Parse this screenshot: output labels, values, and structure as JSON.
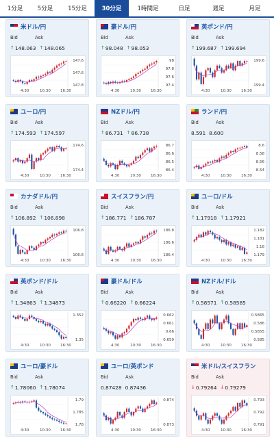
{
  "tabs": [
    {
      "label": "1分足",
      "active": false
    },
    {
      "label": "5分足",
      "active": false
    },
    {
      "label": "15分足",
      "active": false
    },
    {
      "label": "30分足",
      "active": true
    },
    {
      "label": "1時間足",
      "active": false
    },
    {
      "label": "日足",
      "active": false
    },
    {
      "label": "週足",
      "active": false
    },
    {
      "label": "月足",
      "active": false
    }
  ],
  "labels": {
    "bid": "Bid",
    "ask": "Ask"
  },
  "colors": {
    "accent": "#1b4c9a",
    "up": "#d02a2a",
    "down": "#1b56a6",
    "ma": "#c03cc0",
    "arrow_up": "#2a8a3e",
    "arrow_down": "#d23a3a",
    "highlight": "#fbeef0"
  },
  "pairs": [
    {
      "name": "米ドル/円",
      "bid": "148.063",
      "ask": "148.065",
      "dir": "up",
      "flag": "us",
      "chart": {
        "closes": [
          147.58,
          147.55,
          147.6,
          147.57,
          147.52,
          147.5,
          147.55,
          147.6,
          147.58,
          147.62,
          147.68,
          147.66,
          147.7,
          147.72,
          147.75,
          147.8,
          147.78,
          147.85,
          147.9,
          147.95,
          147.98,
          148.0,
          148.05,
          148.06
        ],
        "y_ticks": [
          "147.6",
          "147.6",
          "147.8"
        ],
        "x_ticks": [
          "4:30",
          "10:30",
          "16:30"
        ]
      }
    },
    {
      "name": "豪ドル/円",
      "bid": "98.048",
      "ask": "98.053",
      "dir": "up",
      "flag": "au",
      "chart": {
        "closes": [
          97.62,
          97.6,
          97.64,
          97.62,
          97.65,
          97.63,
          97.62,
          97.64,
          97.66,
          97.65,
          97.68,
          97.7,
          97.72,
          97.75,
          97.8,
          97.82,
          97.85,
          97.88,
          97.9,
          97.95,
          97.98,
          98.0,
          98.02,
          98.05
        ],
        "y_ticks": [
          "98",
          "97.8",
          "97.6",
          "97.4"
        ],
        "x_ticks": [
          "4:30",
          "10:30",
          "16:30"
        ]
      }
    },
    {
      "name": "英ポンド/円",
      "bid": "199.687",
      "ask": "199.694",
      "dir": "up",
      "flag": "gb",
      "chart": {
        "closes": [
          199.6,
          199.3,
          199.45,
          199.2,
          199.35,
          199.5,
          199.55,
          199.45,
          199.35,
          199.5,
          199.6,
          199.55,
          199.45,
          199.5,
          199.6,
          199.55,
          199.65,
          199.5,
          199.6,
          199.7,
          199.6,
          199.65,
          199.7,
          199.69
        ],
        "y_ticks": [
          "199.6",
          "199.4"
        ],
        "x_ticks": [
          "4:30",
          "10:30",
          "16:30"
        ]
      }
    },
    {
      "name": "ユーロ/円",
      "bid": "174.593",
      "ask": "174.597",
      "dir": "up",
      "flag": "eu",
      "chart": {
        "closes": [
          174.42,
          174.45,
          174.4,
          174.42,
          174.38,
          174.4,
          174.45,
          174.5,
          174.3,
          174.4,
          174.45,
          174.42,
          174.5,
          174.52,
          174.55,
          174.58,
          174.6,
          174.55,
          174.6,
          174.62,
          174.6,
          174.55,
          174.58,
          174.59
        ],
        "y_ticks": [
          "174.6",
          "174.4"
        ],
        "x_ticks": [
          "4:30",
          "10:30",
          "16:30"
        ]
      }
    },
    {
      "name": "NZドル/円",
      "bid": "86.731",
      "ask": "86.738",
      "dir": "up",
      "flag": "nz",
      "chart": {
        "closes": [
          86.55,
          86.5,
          86.48,
          86.52,
          86.5,
          86.45,
          86.5,
          86.55,
          86.52,
          86.5,
          86.48,
          86.5,
          86.52,
          86.55,
          86.6,
          86.58,
          86.62,
          86.65,
          86.68,
          86.7,
          86.66,
          86.7,
          86.72,
          86.73
        ],
        "y_ticks": [
          "86.7",
          "86.6",
          "86.5",
          "86.4"
        ],
        "x_ticks": [
          "4:30",
          "10:30",
          "16:30"
        ]
      }
    },
    {
      "name": "ランド/円",
      "bid": "8.591",
      "ask": "8.600",
      "dir": "none",
      "flag": "za",
      "chart": {
        "closes": [
          8.535,
          8.54,
          8.53,
          8.535,
          8.54,
          8.545,
          8.55,
          8.548,
          8.552,
          8.555,
          8.55,
          8.56,
          8.565,
          8.562,
          8.57,
          8.575,
          8.58,
          8.578,
          8.585,
          8.588,
          8.59,
          8.592,
          8.595,
          8.59
        ],
        "y_ticks": [
          "8.6",
          "8.58",
          "8.56",
          "8.54"
        ],
        "x_ticks": [
          "4:30",
          "10:30",
          "16:30"
        ]
      }
    },
    {
      "name": "カナダドル/円",
      "bid": "106.892",
      "ask": "106.898",
      "dir": "up",
      "flag": "ca",
      "chart": {
        "closes": [
          106.85,
          106.7,
          106.6,
          106.65,
          106.62,
          106.6,
          106.65,
          106.7,
          106.68,
          106.65,
          106.7,
          106.72,
          106.75,
          106.74,
          106.78,
          106.8,
          106.82,
          106.85,
          106.84,
          106.86,
          106.88,
          106.87,
          106.9,
          106.89
        ],
        "y_ticks": [
          "106.8",
          "106.6"
        ],
        "x_ticks": [
          "4:30",
          "10:30",
          "16:30"
        ]
      }
    },
    {
      "name": "スイスフラン/円",
      "bid": "186.771",
      "ask": "186.787",
      "dir": "up",
      "flag": "ch",
      "chart": {
        "closes": [
          186.5,
          186.45,
          186.55,
          186.5,
          186.48,
          186.5,
          186.55,
          186.52,
          186.5,
          186.55,
          186.6,
          186.55,
          186.58,
          186.6,
          186.62,
          186.6,
          186.65,
          186.7,
          186.68,
          186.72,
          186.75,
          186.74,
          186.78,
          186.77
        ],
        "y_ticks": [
          "186.8",
          "186.6",
          "186.4"
        ],
        "x_ticks": [
          "4:30",
          "10:30",
          "16:30"
        ]
      }
    },
    {
      "name": "ユーロ/ドル",
      "bid": "1.17918",
      "ask": "1.17921",
      "dir": "up",
      "flag": "eu",
      "chart": {
        "closes": [
          1.1808,
          1.1812,
          1.1815,
          1.1812,
          1.1818,
          1.1815,
          1.182,
          1.1818,
          1.1815,
          1.181,
          1.1812,
          1.1808,
          1.1805,
          1.1808,
          1.1802,
          1.1805,
          1.18,
          1.1802,
          1.1798,
          1.18,
          1.1795,
          1.1798,
          1.179,
          1.1792
        ],
        "y_ticks": [
          "1.182",
          "1.181",
          "1.18",
          "1.179"
        ],
        "x_ticks": [
          "4:30",
          "10:30",
          "16:30"
        ]
      }
    },
    {
      "name": "英ポンド/ドル",
      "bid": "1.34863",
      "ask": "1.34873",
      "dir": "up",
      "flag": "gb",
      "chart": {
        "closes": [
          1.3518,
          1.3515,
          1.352,
          1.3518,
          1.3515,
          1.3512,
          1.3515,
          1.352,
          1.3518,
          1.3515,
          1.3512,
          1.351,
          1.3512,
          1.3508,
          1.3505,
          1.3508,
          1.3504,
          1.35,
          1.3498,
          1.3495,
          1.349,
          1.3485,
          1.3488,
          1.3486
        ],
        "y_ticks": [
          "1.352",
          "1.35"
        ],
        "x_ticks": [
          "4:30",
          "10:30",
          "16:30"
        ]
      }
    },
    {
      "name": "豪ドル/ドル",
      "bid": "0.66220",
      "ask": "0.66224",
      "dir": "up",
      "flag": "au",
      "chart": {
        "closes": [
          0.6605,
          0.6602,
          0.6598,
          0.66,
          0.6595,
          0.659,
          0.6595,
          0.6592,
          0.6598,
          0.66,
          0.6605,
          0.661,
          0.6615,
          0.662,
          0.6618,
          0.6622,
          0.662,
          0.6618,
          0.6622,
          0.6625,
          0.662,
          0.6618,
          0.662,
          0.6622
        ],
        "y_ticks": [
          "0.662",
          "0.661",
          "0.66",
          "0.659"
        ],
        "x_ticks": [
          "4:30",
          "10:30",
          "16:30"
        ]
      }
    },
    {
      "name": "NZドル/ドル",
      "bid": "0.58571",
      "ask": "0.58585",
      "dir": "up",
      "flag": "nz",
      "chart": {
        "closes": [
          0.5858,
          0.5855,
          0.5852,
          0.585,
          0.5855,
          0.5858,
          0.5855,
          0.586,
          0.5858,
          0.5862,
          0.5858,
          0.5855,
          0.5858,
          0.586,
          0.5862,
          0.5858,
          0.5855,
          0.5852,
          0.5855,
          0.5858,
          0.5855,
          0.5858,
          0.5856,
          0.5857
        ],
        "y_ticks": [
          "0.5865",
          "0.586",
          "0.5855",
          "0.585"
        ],
        "x_ticks": [
          "4:30",
          "10:30",
          "16:30"
        ]
      }
    },
    {
      "name": "ユーロ/豪ドル",
      "bid": "1.78060",
      "ask": "1.78074",
      "dir": "up",
      "flag": "eu",
      "chart": {
        "closes": [
          1.7875,
          1.7878,
          1.788,
          1.7878,
          1.7882,
          1.788,
          1.7878,
          1.788,
          1.7882,
          1.7885,
          1.786,
          1.785,
          1.7845,
          1.784,
          1.7835,
          1.783,
          1.7825,
          1.782,
          1.7818,
          1.7815,
          1.781,
          1.7808,
          1.7805,
          1.7806
        ],
        "y_ticks": [
          "1.79",
          "1.785",
          "1.78"
        ],
        "x_ticks": [
          "4:30",
          "10:30",
          "16:30"
        ]
      }
    },
    {
      "name": "ユーロ/英ポンド",
      "bid": "0.87428",
      "ask": "0.87436",
      "dir": "none",
      "flag": "eu",
      "chart": {
        "closes": [
          0.8732,
          0.8728,
          0.873,
          0.8725,
          0.8728,
          0.873,
          0.8735,
          0.8732,
          0.873,
          0.8735,
          0.8738,
          0.8735,
          0.8732,
          0.8735,
          0.8738,
          0.874,
          0.8738,
          0.8735,
          0.8738,
          0.874,
          0.8742,
          0.8745,
          0.8742,
          0.8743
        ],
        "y_ticks": [
          "0.874",
          "0.873"
        ],
        "x_ticks": [
          "4:30",
          "10:30",
          "16:30"
        ]
      }
    },
    {
      "name": "米ドル/スイスフラン",
      "bid": "0.79264",
      "ask": "0.79279",
      "dir": "down",
      "flag": "us",
      "highlight": true,
      "chart": {
        "closes": [
          0.7922,
          0.7918,
          0.7915,
          0.7918,
          0.792,
          0.7915,
          0.7912,
          0.7915,
          0.7918,
          0.792,
          0.7918,
          0.7915,
          0.7912,
          0.7915,
          0.7918,
          0.792,
          0.7922,
          0.7925,
          0.7922,
          0.7928,
          0.7925,
          0.793,
          0.7928,
          0.7926
        ],
        "y_ticks": [
          "0.793",
          "0.792",
          "0.791"
        ],
        "x_ticks": [
          "4:30",
          "10:30",
          "16:30"
        ]
      }
    }
  ]
}
